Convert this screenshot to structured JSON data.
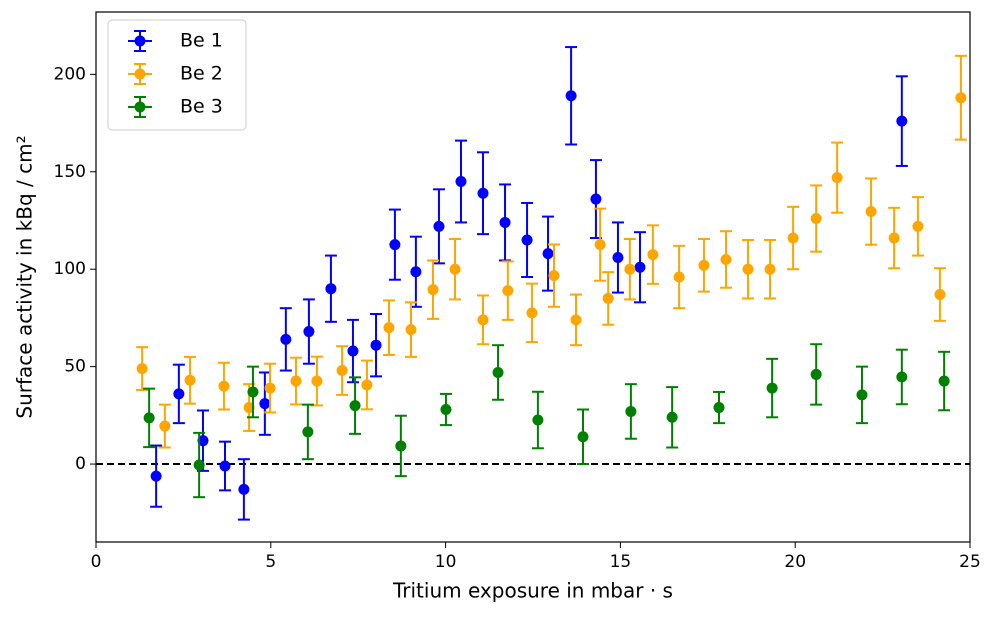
{
  "chart_data": {
    "type": "scatter",
    "xlabel": "Tritium exposure in mbar · s",
    "ylabel": "Surface activity in kBq / cm²",
    "xlim": [
      0,
      25
    ],
    "ylim": [
      -40,
      232
    ],
    "xticks": [
      0,
      5,
      10,
      15,
      20,
      25
    ],
    "yticks": [
      0,
      50,
      100,
      150,
      200
    ],
    "reference_line": 0,
    "legend": "upper left",
    "series": [
      {
        "name": "Be 1",
        "color": "#0000ff",
        "x": [
          1.72,
          2.37,
          3.06,
          3.69,
          4.23,
          4.83,
          5.43,
          6.09,
          6.72,
          7.35,
          8.01,
          8.55,
          9.15,
          9.81,
          10.44,
          11.07,
          11.7,
          12.33,
          12.93,
          13.59,
          14.3,
          14.93,
          15.56,
          23.05
        ],
        "values": [
          -6.2,
          36,
          12,
          -1,
          -13,
          31,
          64,
          68,
          90,
          58,
          61,
          112.6,
          98.7,
          122,
          145,
          139,
          124,
          115,
          108,
          189,
          136,
          106,
          101,
          176
        ],
        "errors": [
          15.7,
          15,
          15.5,
          12.5,
          15.5,
          16,
          16,
          16.5,
          17,
          16,
          16,
          18,
          18,
          19,
          21,
          21,
          19.5,
          19,
          19,
          25,
          20,
          18,
          18,
          23
        ]
      },
      {
        "name": "Be 2",
        "color": "#ffa500",
        "x": [
          1.32,
          1.97,
          2.69,
          3.66,
          4.38,
          4.98,
          5.72,
          6.32,
          7.04,
          7.75,
          8.38,
          9.01,
          9.64,
          10.27,
          11.07,
          11.78,
          12.47,
          13.1,
          13.73,
          14.42,
          14.65,
          15.27,
          15.93,
          16.68,
          17.39,
          18.02,
          18.65,
          19.28,
          19.94,
          20.6,
          21.2,
          22.17,
          22.83,
          23.51,
          24.14,
          24.74
        ],
        "values": [
          49,
          19.5,
          43,
          40,
          29,
          39,
          42.6,
          42.6,
          48,
          40.6,
          70,
          69,
          89.5,
          100,
          74,
          89,
          77.6,
          96.7,
          74,
          112.6,
          85,
          100,
          107.5,
          96,
          102,
          105,
          100,
          100,
          116,
          126,
          147,
          129.6,
          116,
          122,
          87,
          188
        ],
        "errors": [
          11,
          11,
          12,
          12,
          12,
          12.5,
          12,
          12.5,
          12.5,
          12.5,
          14,
          14,
          15,
          15.5,
          12.5,
          15,
          15,
          16,
          13,
          18.5,
          13.5,
          15.5,
          15,
          16,
          13.5,
          14.5,
          15,
          15,
          16,
          17,
          18,
          17,
          15.5,
          15,
          13.5,
          21.5
        ]
      },
      {
        "name": "Be 3",
        "color": "#008000",
        "x": [
          1.52,
          2.95,
          4.49,
          6.06,
          7.41,
          8.72,
          10.01,
          11.5,
          12.64,
          13.93,
          15.3,
          16.48,
          17.82,
          19.34,
          20.6,
          21.91,
          23.05,
          24.26
        ],
        "values": [
          23.7,
          -0.5,
          37,
          16.5,
          30,
          9.3,
          28,
          47,
          22.6,
          14,
          27,
          24,
          29,
          39,
          46,
          35.5,
          44.7,
          42.6
        ],
        "errors": [
          15,
          16.5,
          13,
          14,
          14.5,
          15.5,
          8,
          14,
          14.5,
          14,
          14,
          15.5,
          8,
          15,
          15.5,
          14.5,
          14,
          15
        ]
      }
    ]
  }
}
